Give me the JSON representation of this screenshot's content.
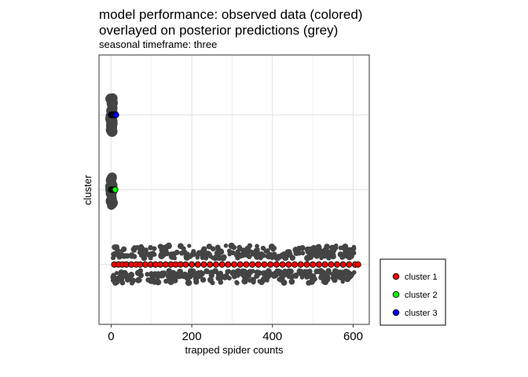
{
  "chart_data": {
    "type": "scatter",
    "title_line1": "model performance: observed data (colored)",
    "title_line2": "overlayed on posterior predictions (grey)",
    "subtitle": "seasonal timeframe: three",
    "xlabel": "trapped spider counts",
    "ylabel": "cluster",
    "xlim": [
      -30,
      640
    ],
    "x_ticks": [
      0,
      200,
      400,
      600
    ],
    "x_tick_labels": [
      "0",
      "200",
      "400",
      "600"
    ],
    "y_categories": [
      "cluster 1",
      "cluster 2",
      "cluster 3"
    ],
    "y_labels_shown": false,
    "grid": true,
    "legend_position": "right",
    "prediction_color": "#444444",
    "series": [
      {
        "name": "cluster 1",
        "cluster": 1,
        "color": "#ff0000",
        "x": [
          8,
          18,
          28,
          38,
          50,
          62,
          72,
          85,
          98,
          110,
          122,
          135,
          148,
          160,
          172,
          185,
          200,
          215,
          230,
          245,
          260,
          275,
          290,
          305,
          320,
          335,
          350,
          365,
          380,
          395,
          410,
          425,
          440,
          455,
          470,
          485,
          500,
          515,
          530,
          545,
          560,
          575,
          590,
          605,
          612
        ]
      },
      {
        "name": "cluster 2",
        "cluster": 2,
        "color": "#00ff00",
        "x": [
          0,
          2,
          4,
          5,
          6,
          8,
          10
        ]
      },
      {
        "name": "cluster 3",
        "cluster": 3,
        "color": "#0000ff",
        "x": [
          0,
          2,
          4,
          6,
          8,
          10,
          12
        ]
      }
    ],
    "legend": [
      {
        "label": "cluster 1",
        "color": "#ff0000"
      },
      {
        "label": "cluster 2",
        "color": "#00ff00"
      },
      {
        "label": "cluster 3",
        "color": "#0000ff"
      }
    ]
  }
}
